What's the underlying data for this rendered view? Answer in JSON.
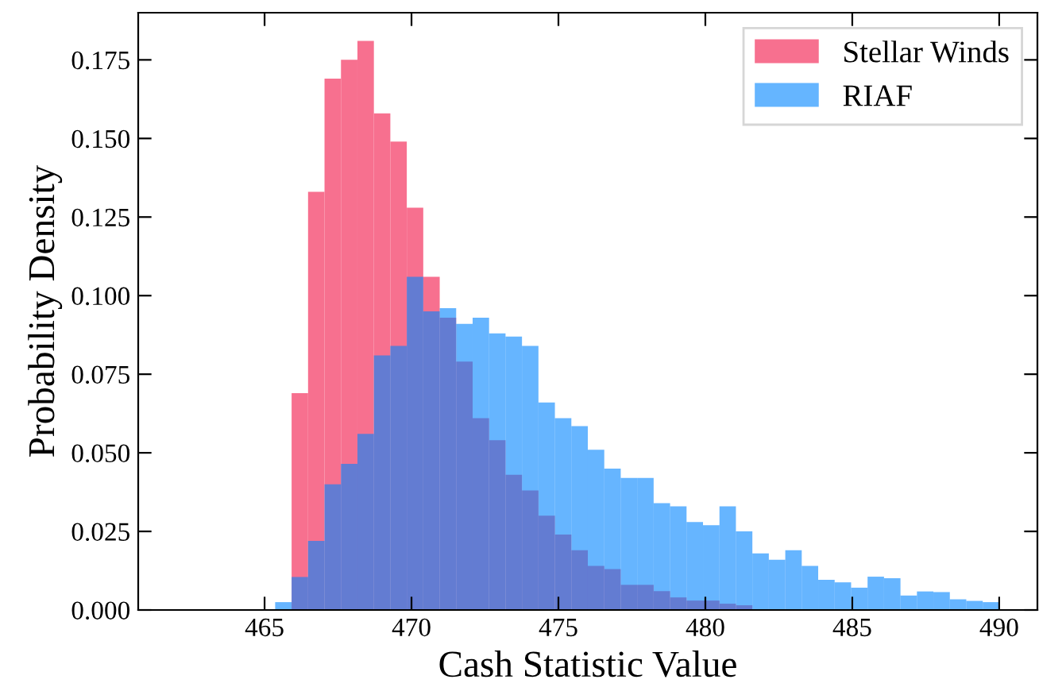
{
  "chart_data": {
    "type": "histogram",
    "xlabel": "Cash Statistic Value",
    "ylabel": "Probability Density",
    "bins": [
      465.36,
      465.92,
      466.48,
      467.04,
      467.6,
      468.16,
      468.72,
      469.28,
      469.84,
      470.4,
      470.96,
      471.52,
      472.08,
      472.64,
      473.2,
      473.76,
      474.32,
      474.88,
      475.44,
      476.0,
      476.56,
      477.12,
      477.68,
      478.24,
      478.8,
      479.36,
      479.92,
      480.48,
      481.04,
      481.6,
      482.16,
      482.72,
      483.28,
      483.84,
      484.4,
      484.96,
      485.52,
      486.08,
      486.64,
      487.2,
      487.76,
      488.32,
      488.88,
      489.44,
      490.0
    ],
    "series": [
      {
        "name": "Stellar Winds",
        "color": "#f7708f",
        "values": [
          0,
          0.069,
          0.133,
          0.169,
          0.175,
          0.181,
          0.158,
          0.149,
          0.128,
          0.106,
          0.093,
          0.079,
          0.061,
          0.054,
          0.043,
          0.038,
          0.03,
          0.024,
          0.019,
          0.014,
          0.013,
          0.008,
          0.008,
          0.006,
          0.004,
          0.003,
          0.003,
          0.002,
          0.0015,
          null,
          null,
          null,
          null,
          null,
          null,
          null,
          null,
          null,
          null,
          0,
          0,
          0,
          0,
          0
        ]
      },
      {
        "name": "RIAF",
        "color": "#0084ff",
        "values": [
          0.0025,
          0.0105,
          0.022,
          0.04,
          0.0465,
          0.056,
          0.081,
          0.084,
          0.106,
          0.095,
          0.096,
          0.091,
          0.093,
          0.088,
          0.087,
          0.084,
          0.066,
          0.061,
          0.0585,
          0.051,
          0.045,
          0.042,
          0.042,
          0.034,
          0.033,
          0.028,
          0.027,
          0.033,
          0.025,
          0.018,
          0.016,
          0.019,
          0.014,
          0.0096,
          0.0088,
          0.0071,
          0.0106,
          0.0101,
          0.0046,
          0.0059,
          0.0057,
          0.0034,
          0.0029,
          0.0025
        ]
      }
    ],
    "xlim": [
      460.7,
      491.3
    ],
    "xticks": [
      465,
      470,
      475,
      480,
      485,
      490
    ],
    "ylim": [
      0,
      0.19
    ],
    "yticks": [
      {
        "value": 0,
        "label": "0.000"
      },
      0.025,
      {
        "value": 0.05,
        "label": "0.050"
      },
      0.075,
      {
        "value": 0.1,
        "label": "0.100"
      },
      0.125,
      {
        "value": 0.15,
        "label": "0.150"
      },
      0.175
    ],
    "grid": false,
    "legend": "top right"
  }
}
